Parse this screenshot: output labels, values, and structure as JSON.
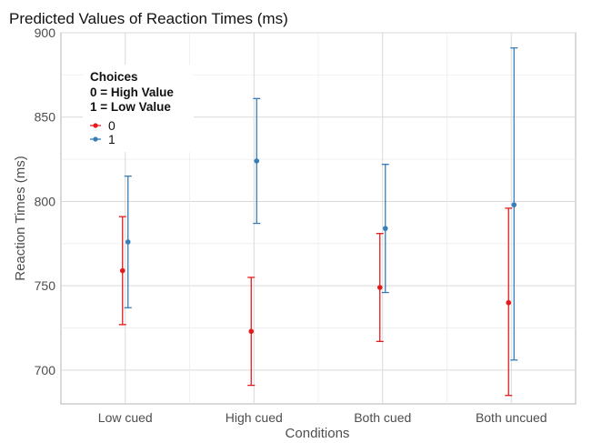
{
  "chart_data": {
    "type": "scatter",
    "title": "Predicted Values of Reaction Times (ms)",
    "xlabel": "Conditions",
    "ylabel": "Reaction Times (ms)",
    "categories": [
      "Low cued",
      "High cued",
      "Both cued",
      "Both uncued"
    ],
    "ylim": [
      680,
      900
    ],
    "yticks": [
      700,
      750,
      800,
      850,
      900
    ],
    "grid": true,
    "legend": {
      "placement": "top-left",
      "title_lines": [
        "Choices",
        "0 = High Value",
        "1 = Low Value"
      ]
    },
    "series": [
      {
        "name": "0",
        "color": "#e41a1c",
        "values": [
          759,
          723,
          749,
          740
        ],
        "lower": [
          727,
          691,
          717,
          685
        ],
        "upper": [
          791,
          755,
          781,
          796
        ]
      },
      {
        "name": "1",
        "color": "#377eb8",
        "values": [
          776,
          824,
          784,
          798
        ],
        "lower": [
          737,
          787,
          746,
          706
        ],
        "upper": [
          815,
          861,
          822,
          891
        ]
      }
    ]
  }
}
